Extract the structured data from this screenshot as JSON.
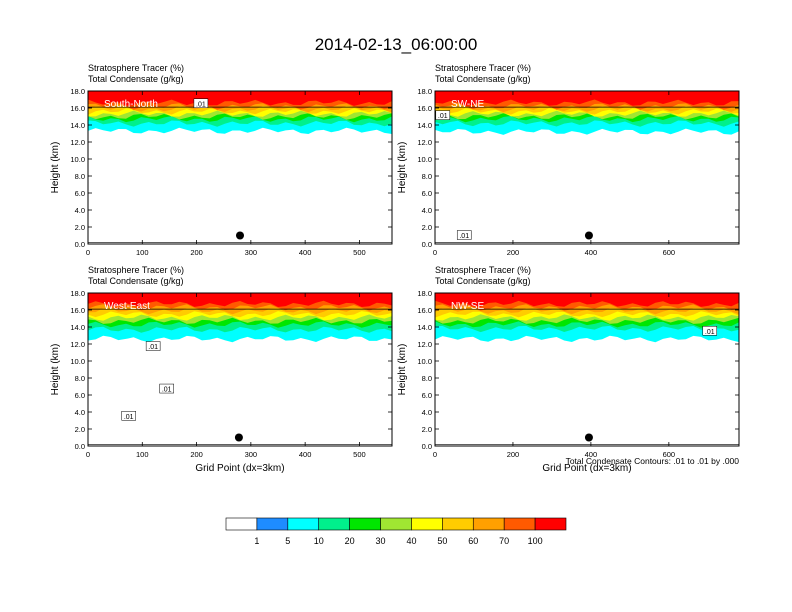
{
  "figure": {
    "title": "2014-02-13_06:00:00",
    "panel_title_line1": "Stratosphere Tracer   (%)",
    "panel_title_line2": "Total Condensate   (g/kg)",
    "contour_note": "Total Condensate Contours: .01 to .01 by .000"
  },
  "colors": {
    "scale": [
      "#ffffff",
      "#1e8cff",
      "#00ffff",
      "#00f08c",
      "#00e600",
      "#a0e632",
      "#ffff00",
      "#ffcc00",
      "#ffa000",
      "#ff5a00",
      "#ff0000"
    ],
    "contour": "#000000",
    "marker": "#000000"
  },
  "chart_data": [
    {
      "type": "heatmap",
      "name": "South-North",
      "xlabel": "",
      "ylabel": "Height (km)",
      "xlim": [
        0,
        560
      ],
      "ylim": [
        0,
        18
      ],
      "xticks": [
        "0",
        "100",
        "200",
        "300",
        "400",
        "500"
      ],
      "yticks": [
        "0.0",
        "2.0",
        "4.0",
        "6.0",
        "8.0",
        "10.0",
        "12.0",
        "14.0",
        "16.0",
        "18.0"
      ],
      "contour_labels": [
        {
          "text": ".01",
          "x": 208,
          "y": 16.5
        }
      ],
      "marker": {
        "x": 280,
        "y": 1.0
      },
      "bands": [
        {
          "level": 100,
          "bottom": 16.6
        },
        {
          "level": 70,
          "bottom": 16.2
        },
        {
          "level": 60,
          "bottom": 15.9
        },
        {
          "level": 50,
          "bottom": 15.6
        },
        {
          "level": 40,
          "bottom": 15.3
        },
        {
          "level": 30,
          "bottom": 15.0
        },
        {
          "level": 20,
          "bottom": 14.7
        },
        {
          "level": 10,
          "bottom": 14.2
        },
        {
          "level": 5,
          "bottom": 13.3
        }
      ]
    },
    {
      "type": "heatmap",
      "name": "SW-NE",
      "xlabel": "",
      "ylabel": "Height (km)",
      "xlim": [
        0,
        780
      ],
      "ylim": [
        0,
        18
      ],
      "xticks": [
        "0",
        "200",
        "400",
        "600"
      ],
      "yticks": [
        "0.0",
        "2.0",
        "4.0",
        "6.0",
        "8.0",
        "10.0",
        "12.0",
        "14.0",
        "16.0",
        "18.0"
      ],
      "contour_labels": [
        {
          "text": ".01",
          "x": 20,
          "y": 15.1
        },
        {
          "text": ".01",
          "x": 75,
          "y": 1.0
        }
      ],
      "marker": {
        "x": 395,
        "y": 1.0
      },
      "bands": [
        {
          "level": 100,
          "bottom": 16.6
        },
        {
          "level": 70,
          "bottom": 16.2
        },
        {
          "level": 60,
          "bottom": 15.9
        },
        {
          "level": 50,
          "bottom": 15.6
        },
        {
          "level": 40,
          "bottom": 15.3
        },
        {
          "level": 30,
          "bottom": 15.0
        },
        {
          "level": 20,
          "bottom": 14.7
        },
        {
          "level": 10,
          "bottom": 14.2
        },
        {
          "level": 5,
          "bottom": 13.2
        }
      ]
    },
    {
      "type": "heatmap",
      "name": "West-East",
      "xlabel": "Grid Point (dx=3km)",
      "ylabel": "Height (km)",
      "xlim": [
        0,
        560
      ],
      "ylim": [
        0,
        18
      ],
      "xticks": [
        "0",
        "100",
        "200",
        "300",
        "400",
        "500"
      ],
      "yticks": [
        "0.0",
        "2.0",
        "4.0",
        "6.0",
        "8.0",
        "10.0",
        "12.0",
        "14.0",
        "16.0",
        "18.0"
      ],
      "contour_labels": [
        {
          "text": ".01",
          "x": 120,
          "y": 11.7
        },
        {
          "text": ".01",
          "x": 145,
          "y": 6.7
        },
        {
          "text": ".01",
          "x": 75,
          "y": 3.5
        }
      ],
      "marker": {
        "x": 278,
        "y": 1.0
      },
      "bands": [
        {
          "level": 100,
          "bottom": 16.7
        },
        {
          "level": 70,
          "bottom": 16.3
        },
        {
          "level": 60,
          "bottom": 15.9
        },
        {
          "level": 50,
          "bottom": 15.5
        },
        {
          "level": 40,
          "bottom": 15.1
        },
        {
          "level": 30,
          "bottom": 14.7
        },
        {
          "level": 20,
          "bottom": 14.3
        },
        {
          "level": 10,
          "bottom": 13.7
        },
        {
          "level": 5,
          "bottom": 12.6
        }
      ]
    },
    {
      "type": "heatmap",
      "name": "NW-SE",
      "xlabel": "Grid Point (dx=3km)",
      "ylabel": "Height (km)",
      "xlim": [
        0,
        780
      ],
      "ylim": [
        0,
        18
      ],
      "xticks": [
        "0",
        "200",
        "400",
        "600"
      ],
      "yticks": [
        "0.0",
        "2.0",
        "4.0",
        "6.0",
        "8.0",
        "10.0",
        "12.0",
        "14.0",
        "16.0",
        "18.0"
      ],
      "contour_labels": [
        {
          "text": ".01",
          "x": 705,
          "y": 13.5
        }
      ],
      "marker": {
        "x": 395,
        "y": 1.0
      },
      "bands": [
        {
          "level": 100,
          "bottom": 16.7
        },
        {
          "level": 70,
          "bottom": 16.3
        },
        {
          "level": 60,
          "bottom": 15.9
        },
        {
          "level": 50,
          "bottom": 15.5
        },
        {
          "level": 40,
          "bottom": 15.1
        },
        {
          "level": 30,
          "bottom": 14.7
        },
        {
          "level": 20,
          "bottom": 14.3
        },
        {
          "level": 10,
          "bottom": 13.8
        },
        {
          "level": 5,
          "bottom": 12.6
        }
      ]
    }
  ],
  "colorbar": {
    "levels": [
      0,
      1,
      5,
      10,
      20,
      30,
      40,
      50,
      60,
      70,
      100
    ],
    "labels": [
      "1",
      "5",
      "10",
      "20",
      "30",
      "40",
      "50",
      "60",
      "70",
      "100"
    ]
  }
}
